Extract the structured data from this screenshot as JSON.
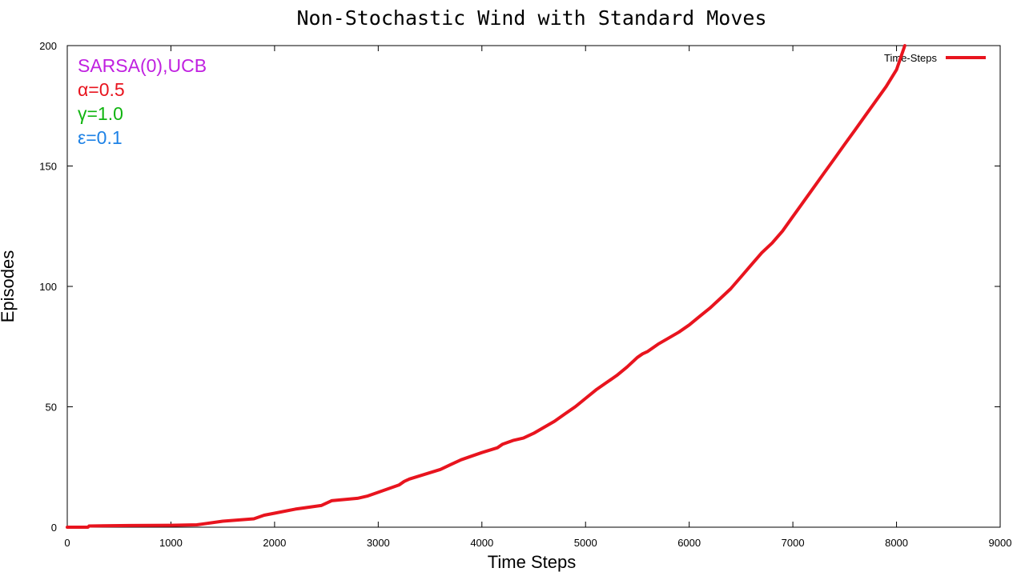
{
  "chart_data": {
    "type": "line",
    "title": "Non-Stochastic Wind with Standard Moves",
    "xlabel": "Time Steps",
    "ylabel": "Episodes",
    "xlim": [
      0,
      9000
    ],
    "ylim": [
      0,
      200
    ],
    "xticks": [
      0,
      1000,
      2000,
      3000,
      4000,
      5000,
      6000,
      7000,
      8000,
      9000
    ],
    "yticks": [
      0,
      50,
      100,
      150,
      200
    ],
    "grid": false,
    "legend_position": "top-right",
    "annotations": [
      {
        "text": "SARSA(0),UCB",
        "color": "#c020e0"
      },
      {
        "text": "α=0.5",
        "color": "#e8141e"
      },
      {
        "text": "γ=1.0",
        "color": "#10b410"
      },
      {
        "text": "ε=0.1",
        "color": "#1e82e6"
      }
    ],
    "series": [
      {
        "name": "Time-Steps",
        "color": "#e8141e",
        "x": [
          0,
          200,
          210,
          600,
          1000,
          1250,
          1500,
          1800,
          1900,
          2000,
          2200,
          2450,
          2500,
          2550,
          2600,
          2800,
          2900,
          3000,
          3200,
          3250,
          3300,
          3450,
          3600,
          3700,
          3800,
          3900,
          4000,
          4150,
          4200,
          4300,
          4400,
          4500,
          4600,
          4700,
          4800,
          4900,
          5000,
          5100,
          5200,
          5300,
          5400,
          5500,
          5550,
          5600,
          5700,
          5800,
          5900,
          6000,
          6100,
          6200,
          6300,
          6400,
          6500,
          6600,
          6700,
          6800,
          6900,
          7000,
          7100,
          7200,
          7300,
          7400,
          7500,
          7600,
          7700,
          7800,
          7900,
          8000,
          8080
        ],
        "y": [
          0,
          0,
          0.5,
          0.7,
          0.8,
          1,
          2.5,
          3.5,
          5,
          5.8,
          7.5,
          9,
          10,
          11,
          11.2,
          12,
          13,
          14.5,
          17.5,
          19,
          20,
          22,
          24,
          26,
          28,
          29.5,
          31,
          33,
          34.5,
          36,
          37,
          39,
          41.5,
          44,
          47,
          50,
          53.5,
          57,
          60,
          63,
          66.5,
          70.5,
          72,
          73,
          76,
          78.5,
          81,
          84,
          87.5,
          91,
          95,
          99,
          104,
          109,
          114,
          118,
          123,
          129,
          135,
          141,
          147,
          153,
          159,
          165,
          171,
          177,
          183,
          190,
          200
        ]
      }
    ]
  }
}
